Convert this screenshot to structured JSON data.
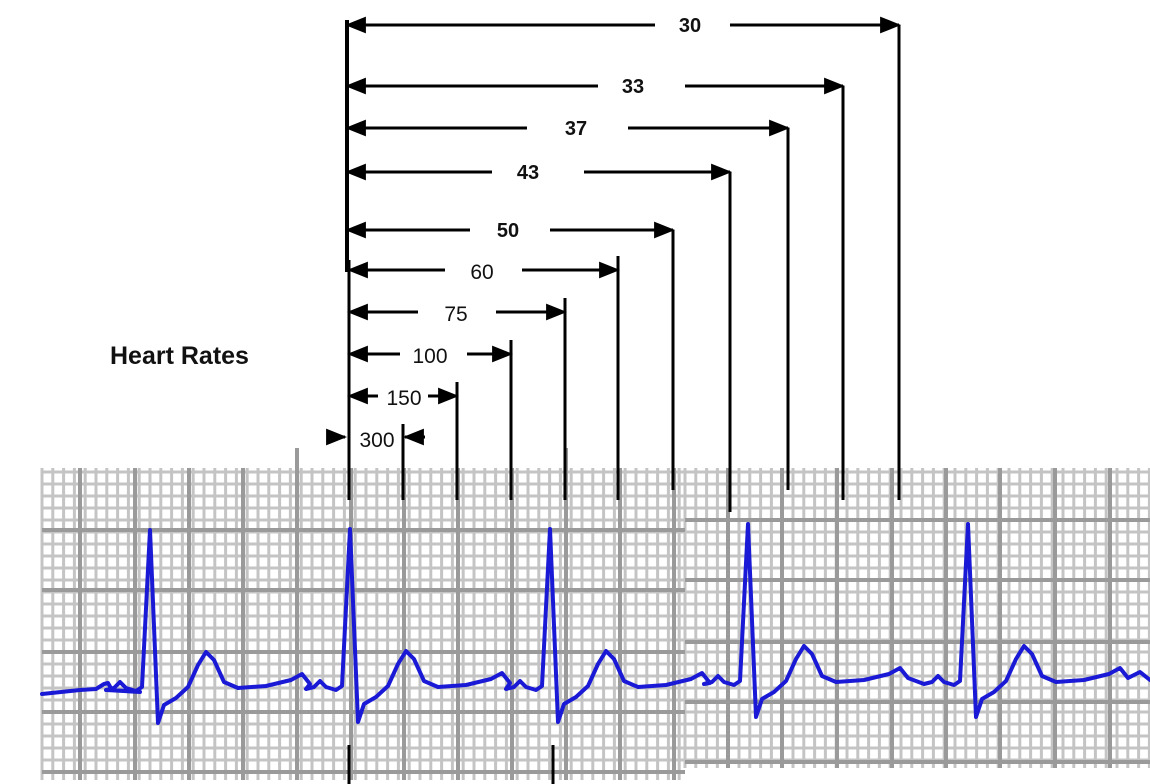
{
  "title": "Heart Rates",
  "labels_top": [
    "30",
    "33",
    "37",
    "43",
    "50"
  ],
  "labels_bottom": [
    "60",
    "75",
    "100",
    "150",
    "300"
  ],
  "colors": {
    "ecg_trace": "#1a1ad6",
    "grid_major": "#9a9a9a",
    "grid_minor": "#c4c4c4",
    "measure_lines": "#000000",
    "text": "#111111"
  }
}
